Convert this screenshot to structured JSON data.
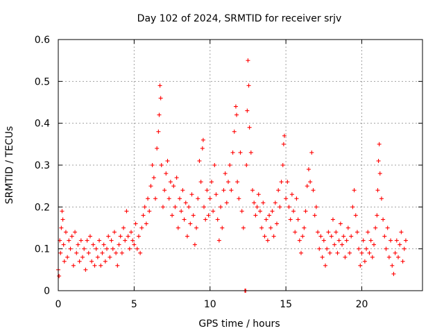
{
  "chart_data": {
    "type": "scatter",
    "title": "Day 102 of 2024, SRMTID for receiver srjv",
    "xlabel": "GPS time / hours",
    "ylabel": "SRMTID / TECUs",
    "xlim": [
      0,
      24
    ],
    "ylim": [
      0,
      0.6
    ],
    "x_ticks": [
      0,
      5,
      10,
      15,
      20
    ],
    "x_tick_labels": [
      "0",
      "5",
      "10",
      "15",
      "20"
    ],
    "y_ticks": [
      0,
      0.1,
      0.2,
      0.3,
      0.4,
      0.5,
      0.6
    ],
    "y_tick_labels": [
      "0",
      "0.1",
      "0.2",
      "0.3",
      "0.4",
      "0.5",
      "0.6"
    ],
    "grid": true,
    "marker": "plus",
    "series": [
      {
        "name": "SRMTID",
        "color": "#ff0000",
        "points_note": "approximate representative sample of the dense scatter",
        "points": [
          [
            0.0,
            0.05
          ],
          [
            0.05,
            0.035
          ],
          [
            0.1,
            0.12
          ],
          [
            0.15,
            0.09
          ],
          [
            0.2,
            0.15
          ],
          [
            0.25,
            0.19
          ],
          [
            0.3,
            0.17
          ],
          [
            0.35,
            0.11
          ],
          [
            0.4,
            0.07
          ],
          [
            0.5,
            0.14
          ],
          [
            0.6,
            0.08
          ],
          [
            0.7,
            0.12
          ],
          [
            0.8,
            0.1
          ],
          [
            0.9,
            0.13
          ],
          [
            1.0,
            0.06
          ],
          [
            1.1,
            0.14
          ],
          [
            1.2,
            0.09
          ],
          [
            1.3,
            0.11
          ],
          [
            1.4,
            0.07
          ],
          [
            1.5,
            0.12
          ],
          [
            1.6,
            0.08
          ],
          [
            1.7,
            0.1
          ],
          [
            1.8,
            0.05
          ],
          [
            1.9,
            0.12
          ],
          [
            2.0,
            0.09
          ],
          [
            2.1,
            0.13
          ],
          [
            2.2,
            0.07
          ],
          [
            2.3,
            0.11
          ],
          [
            2.4,
            0.06
          ],
          [
            2.5,
            0.1
          ],
          [
            2.6,
            0.08
          ],
          [
            2.7,
            0.12
          ],
          [
            2.8,
            0.06
          ],
          [
            2.9,
            0.09
          ],
          [
            3.0,
            0.11
          ],
          [
            3.1,
            0.07
          ],
          [
            3.2,
            0.1
          ],
          [
            3.3,
            0.13
          ],
          [
            3.4,
            0.08
          ],
          [
            3.5,
            0.12
          ],
          [
            3.6,
            0.1
          ],
          [
            3.7,
            0.14
          ],
          [
            3.8,
            0.09
          ],
          [
            3.9,
            0.06
          ],
          [
            4.0,
            0.11
          ],
          [
            4.1,
            0.13
          ],
          [
            4.2,
            0.09
          ],
          [
            4.3,
            0.15
          ],
          [
            4.4,
            0.12
          ],
          [
            4.5,
            0.19
          ],
          [
            4.6,
            0.13
          ],
          [
            4.7,
            0.1
          ],
          [
            4.8,
            0.14
          ],
          [
            4.9,
            0.12
          ],
          [
            5.0,
            0.11
          ],
          [
            5.1,
            0.16
          ],
          [
            5.2,
            0.1
          ],
          [
            5.3,
            0.13
          ],
          [
            5.4,
            0.09
          ],
          [
            5.5,
            0.15
          ],
          [
            5.6,
            0.18
          ],
          [
            5.7,
            0.2
          ],
          [
            5.8,
            0.16
          ],
          [
            5.9,
            0.22
          ],
          [
            6.0,
            0.19
          ],
          [
            6.1,
            0.25
          ],
          [
            6.2,
            0.3
          ],
          [
            6.3,
            0.27
          ],
          [
            6.4,
            0.22
          ],
          [
            6.5,
            0.34
          ],
          [
            6.6,
            0.38
          ],
          [
            6.65,
            0.42
          ],
          [
            6.7,
            0.49
          ],
          [
            6.75,
            0.46
          ],
          [
            6.8,
            0.3
          ],
          [
            6.9,
            0.2
          ],
          [
            7.0,
            0.24
          ],
          [
            7.1,
            0.28
          ],
          [
            7.2,
            0.31
          ],
          [
            7.3,
            0.22
          ],
          [
            7.4,
            0.26
          ],
          [
            7.5,
            0.18
          ],
          [
            7.6,
            0.25
          ],
          [
            7.7,
            0.2
          ],
          [
            7.8,
            0.27
          ],
          [
            7.9,
            0.15
          ],
          [
            8.0,
            0.22
          ],
          [
            8.1,
            0.19
          ],
          [
            8.2,
            0.24
          ],
          [
            8.3,
            0.17
          ],
          [
            8.4,
            0.21
          ],
          [
            8.5,
            0.13
          ],
          [
            8.6,
            0.2
          ],
          [
            8.7,
            0.16
          ],
          [
            8.8,
            0.23
          ],
          [
            8.9,
            0.18
          ],
          [
            9.0,
            0.11
          ],
          [
            9.1,
            0.15
          ],
          [
            9.2,
            0.22
          ],
          [
            9.3,
            0.31
          ],
          [
            9.4,
            0.26
          ],
          [
            9.5,
            0.34
          ],
          [
            9.55,
            0.36
          ],
          [
            9.6,
            0.2
          ],
          [
            9.7,
            0.17
          ],
          [
            9.8,
            0.24
          ],
          [
            9.9,
            0.18
          ],
          [
            10.0,
            0.22
          ],
          [
            10.1,
            0.26
          ],
          [
            10.2,
            0.19
          ],
          [
            10.3,
            0.3
          ],
          [
            10.4,
            0.23
          ],
          [
            10.5,
            0.17
          ],
          [
            10.6,
            0.12
          ],
          [
            10.7,
            0.2
          ],
          [
            10.8,
            0.15
          ],
          [
            10.9,
            0.24
          ],
          [
            11.0,
            0.28
          ],
          [
            11.1,
            0.21
          ],
          [
            11.2,
            0.26
          ],
          [
            11.3,
            0.3
          ],
          [
            11.4,
            0.24
          ],
          [
            11.5,
            0.33
          ],
          [
            11.6,
            0.38
          ],
          [
            11.7,
            0.44
          ],
          [
            11.75,
            0.42
          ],
          [
            11.8,
            0.26
          ],
          [
            11.9,
            0.22
          ],
          [
            12.0,
            0.33
          ],
          [
            12.1,
            0.19
          ],
          [
            12.2,
            0.15
          ],
          [
            12.3,
            0.0
          ],
          [
            12.35,
            0.0
          ],
          [
            12.4,
            0.3
          ],
          [
            12.45,
            0.43
          ],
          [
            12.5,
            0.55
          ],
          [
            12.55,
            0.49
          ],
          [
            12.6,
            0.39
          ],
          [
            12.7,
            0.33
          ],
          [
            12.8,
            0.24
          ],
          [
            12.9,
            0.21
          ],
          [
            13.0,
            0.18
          ],
          [
            13.1,
            0.2
          ],
          [
            13.2,
            0.23
          ],
          [
            13.3,
            0.19
          ],
          [
            13.4,
            0.15
          ],
          [
            13.5,
            0.21
          ],
          [
            13.6,
            0.13
          ],
          [
            13.7,
            0.17
          ],
          [
            13.8,
            0.12
          ],
          [
            13.9,
            0.18
          ],
          [
            14.0,
            0.15
          ],
          [
            14.1,
            0.19
          ],
          [
            14.2,
            0.13
          ],
          [
            14.3,
            0.21
          ],
          [
            14.4,
            0.16
          ],
          [
            14.5,
            0.24
          ],
          [
            14.6,
            0.2
          ],
          [
            14.7,
            0.26
          ],
          [
            14.8,
            0.3
          ],
          [
            14.85,
            0.35
          ],
          [
            14.9,
            0.37
          ],
          [
            15.0,
            0.22
          ],
          [
            15.1,
            0.26
          ],
          [
            15.2,
            0.2
          ],
          [
            15.3,
            0.17
          ],
          [
            15.4,
            0.23
          ],
          [
            15.5,
            0.19
          ],
          [
            15.6,
            0.14
          ],
          [
            15.7,
            0.22
          ],
          [
            15.8,
            0.17
          ],
          [
            15.9,
            0.12
          ],
          [
            16.0,
            0.09
          ],
          [
            16.1,
            0.13
          ],
          [
            16.2,
            0.15
          ],
          [
            16.3,
            0.19
          ],
          [
            16.4,
            0.25
          ],
          [
            16.5,
            0.29
          ],
          [
            16.6,
            0.26
          ],
          [
            16.7,
            0.33
          ],
          [
            16.8,
            0.24
          ],
          [
            16.9,
            0.18
          ],
          [
            17.0,
            0.2
          ],
          [
            17.1,
            0.14
          ],
          [
            17.2,
            0.1
          ],
          [
            17.3,
            0.13
          ],
          [
            17.4,
            0.08
          ],
          [
            17.5,
            0.12
          ],
          [
            17.6,
            0.06
          ],
          [
            17.7,
            0.1
          ],
          [
            17.8,
            0.14
          ],
          [
            17.9,
            0.09
          ],
          [
            18.0,
            0.13
          ],
          [
            18.1,
            0.17
          ],
          [
            18.2,
            0.11
          ],
          [
            18.3,
            0.14
          ],
          [
            18.4,
            0.09
          ],
          [
            18.5,
            0.12
          ],
          [
            18.6,
            0.16
          ],
          [
            18.7,
            0.11
          ],
          [
            18.8,
            0.13
          ],
          [
            18.9,
            0.08
          ],
          [
            19.0,
            0.12
          ],
          [
            19.1,
            0.15
          ],
          [
            19.2,
            0.09
          ],
          [
            19.3,
            0.13
          ],
          [
            19.4,
            0.2
          ],
          [
            19.5,
            0.24
          ],
          [
            19.6,
            0.18
          ],
          [
            19.7,
            0.14
          ],
          [
            19.8,
            0.1
          ],
          [
            19.9,
            0.06
          ],
          [
            20.0,
            0.09
          ],
          [
            20.1,
            0.12
          ],
          [
            20.2,
            0.07
          ],
          [
            20.3,
            0.1
          ],
          [
            20.4,
            0.14
          ],
          [
            20.5,
            0.09
          ],
          [
            20.6,
            0.12
          ],
          [
            20.7,
            0.08
          ],
          [
            20.8,
            0.11
          ],
          [
            20.9,
            0.15
          ],
          [
            21.0,
            0.18
          ],
          [
            21.05,
            0.24
          ],
          [
            21.1,
            0.31
          ],
          [
            21.15,
            0.35
          ],
          [
            21.2,
            0.28
          ],
          [
            21.3,
            0.22
          ],
          [
            21.4,
            0.17
          ],
          [
            21.5,
            0.13
          ],
          [
            21.6,
            0.1
          ],
          [
            21.7,
            0.15
          ],
          [
            21.8,
            0.08
          ],
          [
            21.9,
            0.12
          ],
          [
            22.0,
            0.06
          ],
          [
            22.1,
            0.04
          ],
          [
            22.2,
            0.09
          ],
          [
            22.3,
            0.12
          ],
          [
            22.4,
            0.08
          ],
          [
            22.5,
            0.11
          ],
          [
            22.6,
            0.14
          ],
          [
            22.7,
            0.07
          ],
          [
            22.8,
            0.1
          ],
          [
            22.9,
            0.12
          ]
        ]
      }
    ]
  }
}
